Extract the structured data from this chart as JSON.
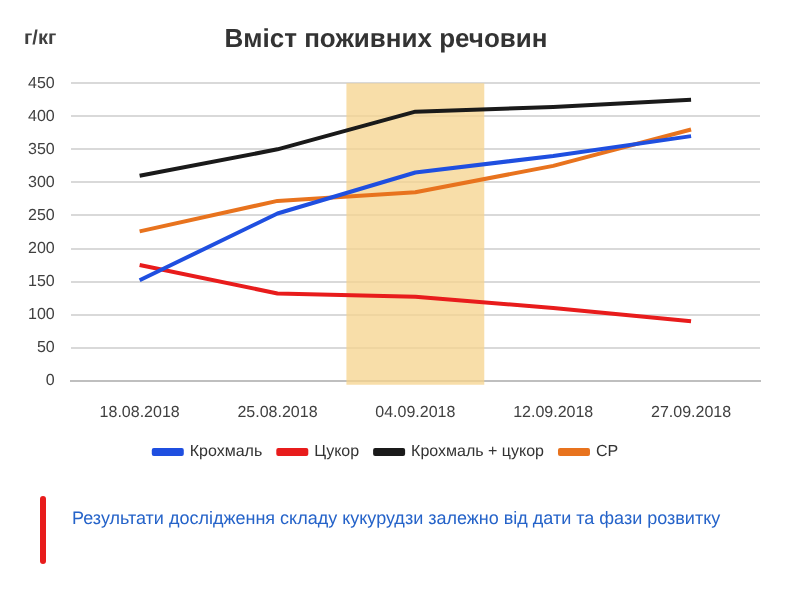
{
  "chart_data": {
    "type": "line",
    "title": "Вміст поживних речовин",
    "ylabel": "г/кг",
    "categories": [
      "18.08.2018",
      "25.08.2018",
      "04.09.2018",
      "12.09.2018",
      "27.09.2018"
    ],
    "series": [
      {
        "name": "Крохмаль",
        "color": "#1f4fe0",
        "values": [
          152,
          253,
          315,
          340,
          370
        ]
      },
      {
        "name": "Цукор",
        "color": "#e81c1c",
        "values": [
          175,
          132,
          127,
          110,
          90
        ]
      },
      {
        "name": "Крохмаль + цукор",
        "color": "#1a1a1a",
        "values": [
          310,
          350,
          407,
          414,
          425
        ]
      },
      {
        "name": "СР",
        "color": "#e8731e",
        "values": [
          226,
          272,
          285,
          325,
          380
        ]
      }
    ],
    "ylim": [
      0,
      450
    ],
    "yticks": [
      0,
      50,
      100,
      150,
      200,
      250,
      300,
      350,
      400,
      450
    ],
    "grid": "y",
    "legend": "bottom",
    "marker": "none",
    "line_style": "solid",
    "bands": [
      {
        "axis": "x",
        "from": "04.09.2018",
        "to": "04.09.2018",
        "color": "#f5d38c"
      }
    ],
    "annotations": [
      "Результати дослідження складу кукурудзи залежно від дати та фази розвитку"
    ]
  }
}
